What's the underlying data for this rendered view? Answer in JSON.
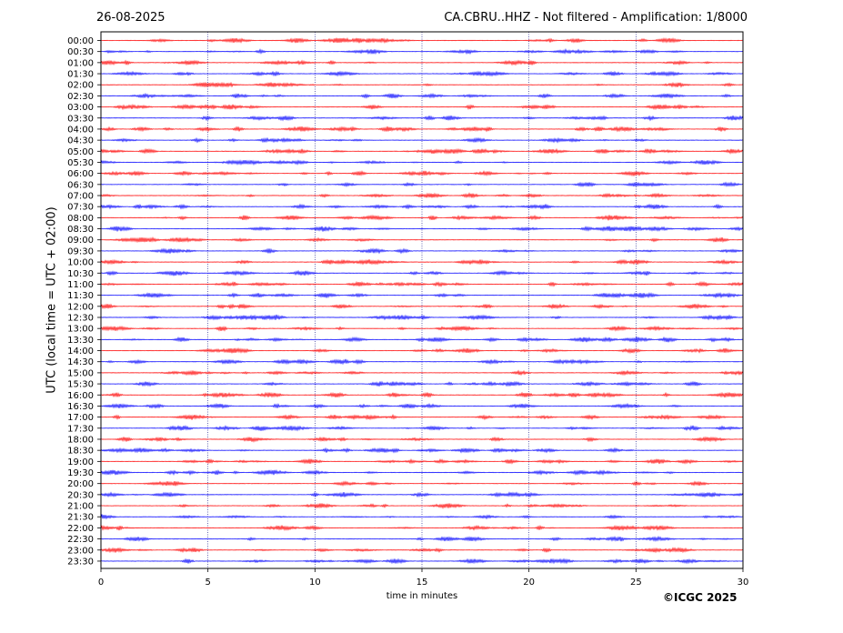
{
  "header": {
    "date": "26-08-2025",
    "title": "CA.CBRU..HHZ - Not filtered - Amplification: 1/8000"
  },
  "footer": {
    "copyright": "©ICGC 2025"
  },
  "colors": {
    "trace_a": "#ff0000",
    "trace_b": "#0000ff",
    "axes": "#000000",
    "grid": "#000080"
  },
  "chart_data": {
    "type": "line",
    "title": "CA.CBRU..HHZ - Not filtered - Amplification: 1/8000",
    "xlabel": "time in minutes",
    "ylabel": "UTC (local time = UTC + 02:00)",
    "xlim": [
      0,
      30
    ],
    "x_ticks": [
      0,
      5,
      10,
      15,
      20,
      25,
      30
    ],
    "grid": "vertical dotted lines at each x tick",
    "trace_rows": [
      "00:00",
      "00:30",
      "01:00",
      "01:30",
      "02:00",
      "02:30",
      "03:00",
      "03:30",
      "04:00",
      "04:30",
      "05:00",
      "05:30",
      "06:00",
      "06:30",
      "07:00",
      "07:30",
      "08:00",
      "08:30",
      "09:00",
      "09:30",
      "10:00",
      "10:30",
      "11:00",
      "11:30",
      "12:00",
      "12:30",
      "13:00",
      "13:30",
      "14:00",
      "14:30",
      "15:00",
      "15:30",
      "16:00",
      "16:30",
      "17:00",
      "17:30",
      "18:00",
      "18:30",
      "19:00",
      "19:30",
      "20:00",
      "20:30",
      "21:00",
      "21:30",
      "22:00",
      "22:30",
      "23:00",
      "23:30"
    ],
    "trace_colors_alternate": [
      "red",
      "blue"
    ]
  }
}
